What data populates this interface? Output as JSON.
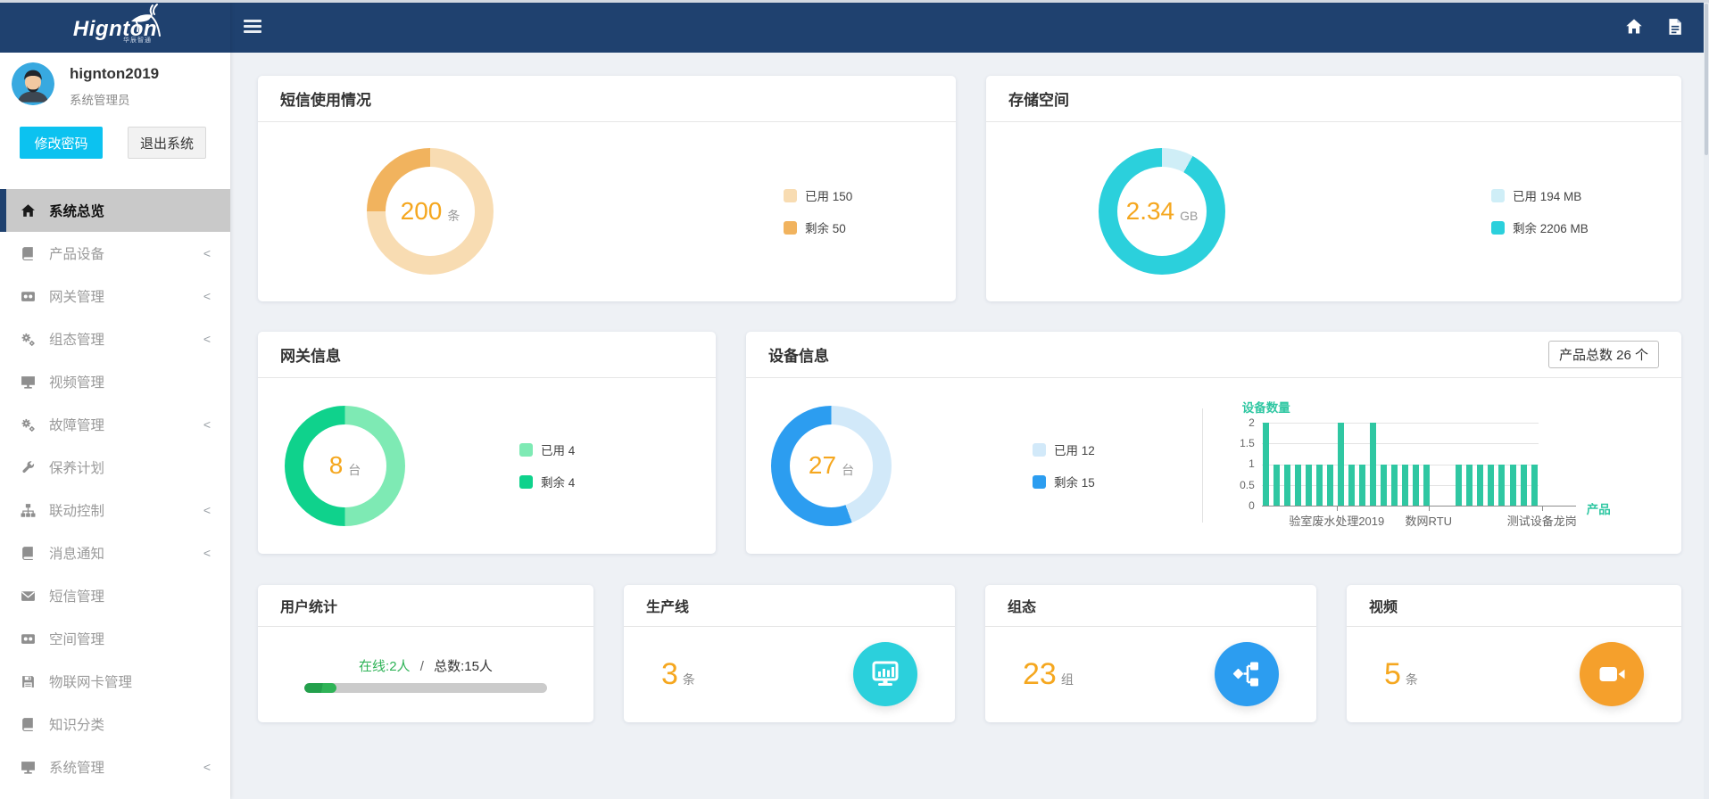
{
  "brand": {
    "name": "Hignton",
    "subtitle": "华辰智通"
  },
  "topbar": {
    "menu_icon": "hamburger-menu-icon",
    "home_icon": "home-icon",
    "doc_icon": "document-icon"
  },
  "user": {
    "username": "hignton2019",
    "role": "系统管理员",
    "change_password_label": "修改密码",
    "logout_label": "退出系统"
  },
  "sidebar": {
    "items": [
      {
        "label": "系统总览",
        "icon": "home-icon",
        "active": true,
        "expandable": false
      },
      {
        "label": "产品设备",
        "icon": "book-icon",
        "active": false,
        "expandable": true
      },
      {
        "label": "网关管理",
        "icon": "film-icon",
        "active": false,
        "expandable": true
      },
      {
        "label": "组态管理",
        "icon": "gears-icon",
        "active": false,
        "expandable": true
      },
      {
        "label": "视频管理",
        "icon": "desktop-icon",
        "active": false,
        "expandable": false
      },
      {
        "label": "故障管理",
        "icon": "gears-icon",
        "active": false,
        "expandable": true
      },
      {
        "label": "保养计划",
        "icon": "wrench-icon",
        "active": false,
        "expandable": false
      },
      {
        "label": "联动控制",
        "icon": "sitemap-icon",
        "active": false,
        "expandable": true
      },
      {
        "label": "消息通知",
        "icon": "book-icon",
        "active": false,
        "expandable": true
      },
      {
        "label": "短信管理",
        "icon": "envelope-icon",
        "active": false,
        "expandable": false
      },
      {
        "label": "空间管理",
        "icon": "film-icon",
        "active": false,
        "expandable": false
      },
      {
        "label": "物联网卡管理",
        "icon": "floppy-icon",
        "active": false,
        "expandable": false
      },
      {
        "label": "知识分类",
        "icon": "book-icon",
        "active": false,
        "expandable": false
      },
      {
        "label": "系统管理",
        "icon": "desktop-icon",
        "active": false,
        "expandable": true
      }
    ],
    "expand_indicator": "<"
  },
  "cards": {
    "sms": {
      "title": "短信使用情况",
      "center_value": "200",
      "center_unit": "条",
      "segments": [
        {
          "label": "已用 150",
          "value": 150,
          "color": "#f8dcb2"
        },
        {
          "label": "剩余 50",
          "value": 50,
          "color": "#f1b35e"
        }
      ]
    },
    "storage": {
      "title": "存储空间",
      "center_value": "2.34",
      "center_unit": "GB",
      "segments": [
        {
          "label": "已用 194 MB",
          "value": 194,
          "color": "#cfeef7"
        },
        {
          "label": "剩余 2206 MB",
          "value": 2206,
          "color": "#2bd0dc"
        }
      ]
    },
    "gateway": {
      "title": "网关信息",
      "center_value": "8",
      "center_unit": "台",
      "segments": [
        {
          "label": "已用 4",
          "value": 4,
          "color": "#7eeab4"
        },
        {
          "label": "剩余 4",
          "value": 4,
          "color": "#0fd28c"
        }
      ]
    },
    "device": {
      "title": "设备信息",
      "badge": "产品总数 26 个",
      "center_value": "27",
      "center_unit": "台",
      "segments": [
        {
          "label": "已用 12",
          "value": 12,
          "color": "#d2e9f9"
        },
        {
          "label": "剩余 15",
          "value": 15,
          "color": "#2c9df0"
        }
      ]
    },
    "users": {
      "title": "用户统计",
      "online_text": "在线:2人",
      "separator": "/",
      "total_text": "总数:15人",
      "online": 2,
      "total": 15,
      "progress_percent": 13.3,
      "progress_color": "#2fb357"
    },
    "production": {
      "title": "生产线",
      "value": "3",
      "unit": "条",
      "icon": "monitor-chart-icon",
      "icon_bg": "#2bd0dc"
    },
    "scada": {
      "title": "组态",
      "value": "23",
      "unit": "组",
      "icon": "flowchart-icon",
      "icon_bg": "#2c9df0"
    },
    "video": {
      "title": "视频",
      "value": "5",
      "unit": "条",
      "icon": "video-camera-icon",
      "icon_bg": "#f5a02c"
    }
  },
  "chart_data": {
    "type": "bar",
    "title": "设备数量",
    "ylabel": "设备数量",
    "xlabel": "产品",
    "x_tick_labels": [
      "验室废水处理2019",
      "数网RTU",
      "测试设备龙岗"
    ],
    "values": [
      2,
      1,
      1,
      1,
      1,
      1,
      1,
      2,
      1,
      1,
      2,
      1,
      1,
      1,
      1,
      1,
      0,
      0,
      1,
      1,
      1,
      1,
      1,
      1,
      1,
      1
    ],
    "ylim": [
      0,
      2
    ],
    "yticks": [
      2,
      1.5,
      1,
      0.5,
      0
    ],
    "grid": true,
    "bar_color": "#2fc7a2",
    "total_products": 26
  }
}
